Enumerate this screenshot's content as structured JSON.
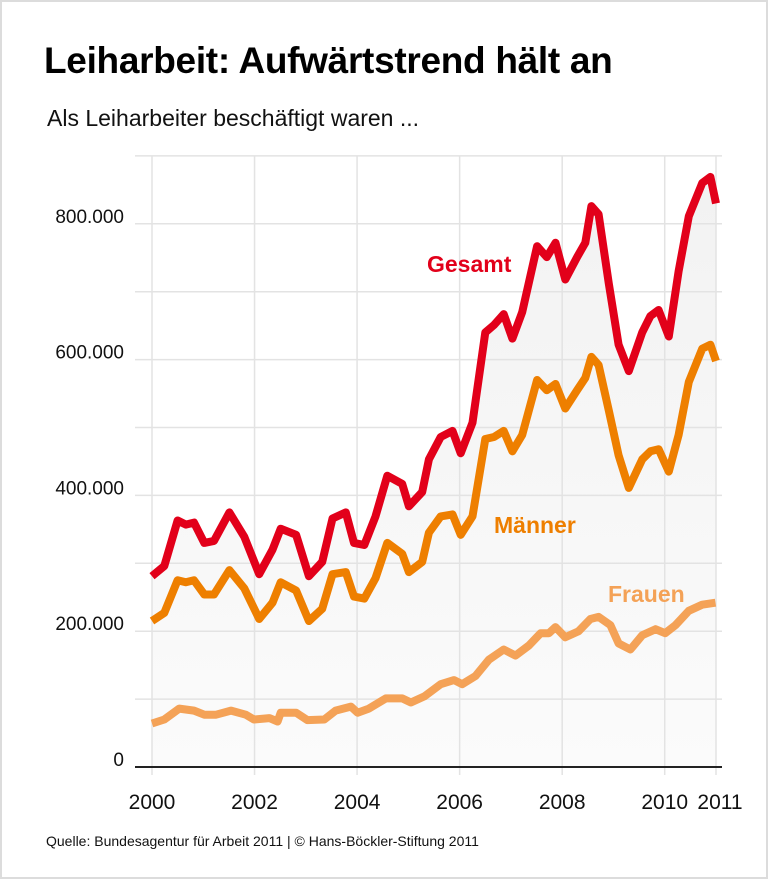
{
  "title": "Leiharbeit: Aufwärtstrend hält an",
  "subtitle": "Als Leiharbeiter beschäftigt waren ...",
  "source": "Quelle: Bundesagentur für Arbeit 2011 | © Hans-Böckler-Stiftung 2011",
  "chart_data": {
    "type": "line",
    "title": "Leiharbeit: Aufwärtstrend hält an",
    "subtitle": "Als Leiharbeiter beschäftigt waren ...",
    "xlabel": "",
    "ylabel": "",
    "xlim": [
      2000,
      2011
    ],
    "ylim": [
      0,
      900000
    ],
    "grid": true,
    "x_ticks": [
      2000,
      2002,
      2004,
      2006,
      2008,
      2010,
      2011
    ],
    "x_tick_labels": [
      "2000",
      "2002",
      "2004",
      "2006",
      "2008",
      "2010",
      "2011"
    ],
    "y_ticks": [
      0,
      200000,
      400000,
      600000,
      800000
    ],
    "y_tick_labels": [
      "0",
      "200.000",
      "400.000",
      "600.000",
      "800.000"
    ],
    "legend": "inline labels",
    "series": [
      {
        "name": "Gesamt",
        "color": "#e2001a",
        "x": [
          2000.0,
          2000.24,
          2000.5,
          2000.66,
          2000.82,
          2001.02,
          2001.21,
          2001.51,
          2001.8,
          2002.09,
          2002.35,
          2002.51,
          2002.81,
          2003.06,
          2003.32,
          2003.52,
          2003.78,
          2003.94,
          2004.14,
          2004.36,
          2004.59,
          2004.88,
          2005.01,
          2005.27,
          2005.4,
          2005.63,
          2005.86,
          2006.02,
          2006.25,
          2006.5,
          2006.67,
          2006.86,
          2007.03,
          2007.22,
          2007.51,
          2007.7,
          2007.87,
          2008.06,
          2008.29,
          2008.45,
          2008.57,
          2008.71,
          2008.91,
          2009.1,
          2009.3,
          2009.56,
          2009.72,
          2009.88,
          2010.08,
          2010.27,
          2010.47,
          2010.73,
          2010.89,
          2011.0
        ],
        "y": [
          281000,
          296000,
          363000,
          357000,
          360000,
          330000,
          333000,
          375000,
          339000,
          284000,
          320000,
          351000,
          342000,
          281000,
          302000,
          366000,
          375000,
          330000,
          327000,
          369000,
          429000,
          417000,
          384000,
          405000,
          453000,
          486000,
          495000,
          462000,
          507000,
          640000,
          651000,
          667000,
          631000,
          670000,
          767000,
          751000,
          772000,
          718000,
          751000,
          772000,
          826000,
          814000,
          712000,
          622000,
          583000,
          640000,
          664000,
          673000,
          634000,
          730000,
          811000,
          860000,
          869000,
          830000
        ]
      },
      {
        "name": "Männer",
        "color": "#ee7f00",
        "x": [
          2000.0,
          2000.24,
          2000.5,
          2000.66,
          2000.82,
          2001.02,
          2001.21,
          2001.51,
          2001.8,
          2002.09,
          2002.35,
          2002.51,
          2002.81,
          2003.06,
          2003.32,
          2003.52,
          2003.78,
          2003.94,
          2004.14,
          2004.36,
          2004.59,
          2004.88,
          2005.01,
          2005.27,
          2005.4,
          2005.63,
          2005.86,
          2006.02,
          2006.25,
          2006.5,
          2006.67,
          2006.86,
          2007.03,
          2007.22,
          2007.51,
          2007.7,
          2007.87,
          2008.06,
          2008.29,
          2008.45,
          2008.57,
          2008.71,
          2008.91,
          2009.1,
          2009.3,
          2009.56,
          2009.72,
          2009.88,
          2010.08,
          2010.27,
          2010.47,
          2010.73,
          2010.89,
          2011.0
        ],
        "y": [
          215000,
          227000,
          275000,
          272000,
          275000,
          254000,
          254000,
          290000,
          263000,
          218000,
          242000,
          272000,
          260000,
          215000,
          233000,
          284000,
          287000,
          251000,
          248000,
          278000,
          330000,
          314000,
          287000,
          302000,
          345000,
          369000,
          372000,
          342000,
          369000,
          483000,
          486000,
          495000,
          465000,
          489000,
          570000,
          555000,
          564000,
          528000,
          555000,
          573000,
          604000,
          592000,
          525000,
          459000,
          411000,
          453000,
          465000,
          468000,
          435000,
          489000,
          567000,
          616000,
          622000,
          598000
        ]
      },
      {
        "name": "Frauen",
        "color": "#f4a257",
        "x": [
          2000.0,
          2000.24,
          2000.53,
          2000.82,
          2001.02,
          2001.25,
          2001.54,
          2001.83,
          2001.99,
          2002.29,
          2002.45,
          2002.51,
          2002.81,
          2003.03,
          2003.36,
          2003.58,
          2003.88,
          2004.01,
          2004.23,
          2004.56,
          2004.88,
          2005.05,
          2005.31,
          2005.63,
          2005.89,
          2006.05,
          2006.31,
          2006.57,
          2006.86,
          2007.09,
          2007.35,
          2007.58,
          2007.74,
          2007.87,
          2008.06,
          2008.32,
          2008.55,
          2008.71,
          2008.94,
          2009.1,
          2009.33,
          2009.56,
          2009.82,
          2010.01,
          2010.21,
          2010.47,
          2010.73,
          2010.99
        ],
        "y": [
          64000,
          70000,
          86000,
          83000,
          77000,
          77000,
          83000,
          77000,
          70000,
          72000,
          67000,
          80000,
          80000,
          69000,
          70000,
          83000,
          89000,
          80000,
          86000,
          101000,
          101000,
          95000,
          104000,
          122000,
          128000,
          122000,
          134000,
          158000,
          173000,
          164000,
          179000,
          197000,
          197000,
          206000,
          191000,
          200000,
          218000,
          221000,
          209000,
          182000,
          173000,
          194000,
          203000,
          197000,
          209000,
          230000,
          239000,
          242000
        ]
      }
    ]
  }
}
